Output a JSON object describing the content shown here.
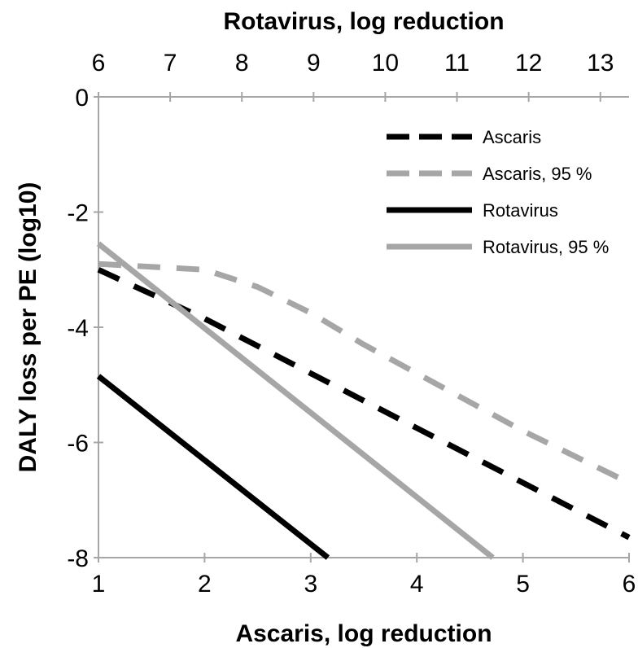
{
  "chart_data": {
    "type": "line",
    "title": "",
    "xlabel": "Ascaris, log reduction",
    "x2label": "Rotavirus, log reduction",
    "ylabel": "DALY loss per PE (log10)",
    "xlim": [
      1,
      6
    ],
    "x2lim": [
      6,
      13.4
    ],
    "ylim": [
      -8,
      0
    ],
    "x_ticks": [
      "1",
      "2",
      "3",
      "4",
      "5",
      "6"
    ],
    "x2_ticks": [
      "6",
      "7",
      "8",
      "9",
      "10",
      "11",
      "12",
      "13"
    ],
    "y_ticks": [
      "0",
      "-2",
      "-4",
      "-6",
      "-8"
    ],
    "grid": false,
    "legend_position": "top-right",
    "series": [
      {
        "name": "Ascaris",
        "axis": "x",
        "color": "#000000",
        "dash": "dashed",
        "x": [
          1,
          2,
          3,
          4,
          5,
          6
        ],
        "y": [
          -3.0,
          -3.85,
          -4.8,
          -5.75,
          -6.7,
          -7.65
        ]
      },
      {
        "name": "Ascaris, 95 %",
        "axis": "x",
        "color": "#a6a6a6",
        "dash": "dashed",
        "x": [
          1,
          2,
          2.5,
          3,
          3.5,
          4,
          5,
          6
        ],
        "y": [
          -2.9,
          -3.0,
          -3.3,
          -3.75,
          -4.3,
          -4.8,
          -5.8,
          -6.7
        ]
      },
      {
        "name": "Rotavirus",
        "axis": "x2",
        "color": "#000000",
        "dash": "solid",
        "x": [
          6.0,
          9.2
        ],
        "y": [
          -4.85,
          -8.0
        ]
      },
      {
        "name": "Rotavirus, 95 %",
        "axis": "x2",
        "color": "#a6a6a6",
        "dash": "solid",
        "x": [
          6.0,
          11.5
        ],
        "y": [
          -2.55,
          -8.0
        ]
      }
    ]
  }
}
